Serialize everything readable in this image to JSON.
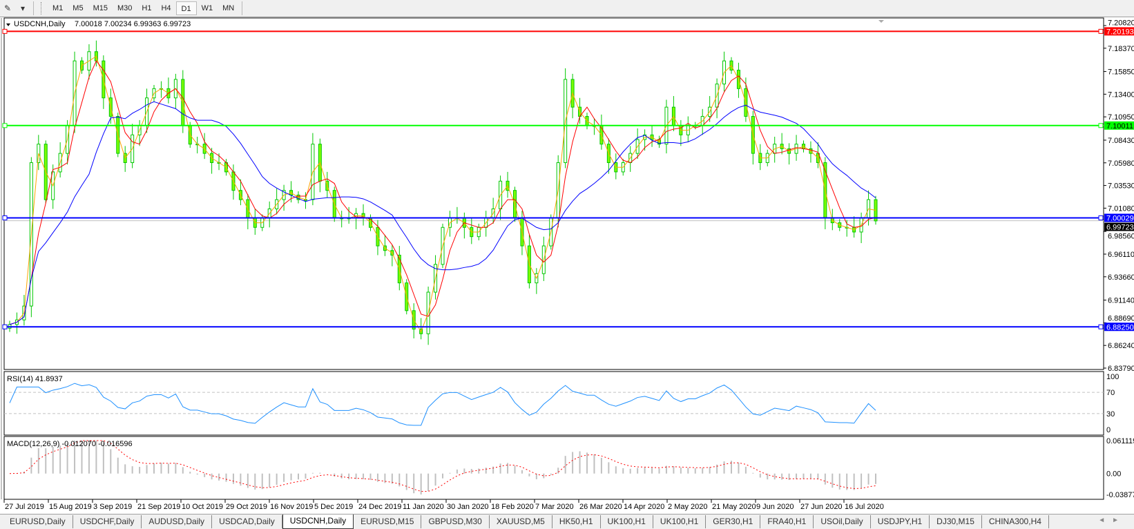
{
  "toolbar": {
    "icon": "crosshair-tools-icon",
    "timeframes": [
      {
        "label": "M1"
      },
      {
        "label": "M5"
      },
      {
        "label": "M15"
      },
      {
        "label": "M30"
      },
      {
        "label": "H1"
      },
      {
        "label": "H4"
      },
      {
        "label": "D1",
        "active": true
      },
      {
        "label": "W1"
      },
      {
        "label": "MN"
      }
    ]
  },
  "chart": {
    "symbol_header": "USDCNH,Daily",
    "ohlc_header": "7.00018 7.00234 6.99363 6.99723",
    "price_ticks": [
      "7.20820",
      "7.18370",
      "7.15850",
      "7.13400",
      "7.10950",
      "7.08430",
      "7.05980",
      "7.03530",
      "7.01080",
      "6.98560",
      "6.96110",
      "6.93660",
      "6.91140",
      "6.88690",
      "6.86240",
      "6.83790"
    ],
    "price_range": [
      6.8379,
      7.2082
    ],
    "horizontal_lines": [
      {
        "label": "7.20193",
        "value": 7.20193,
        "color": "#ff0000"
      },
      {
        "label": "7.10011",
        "value": 7.10011,
        "color": "#00ff00"
      },
      {
        "label": "7.00029",
        "value": 7.00029,
        "color": "#0000ff"
      },
      {
        "label": "6.88250",
        "value": 6.8825,
        "color": "#0000ff"
      }
    ],
    "bid_line": {
      "label": "6.99723",
      "value": 6.99723,
      "color": "#c0c0c0"
    },
    "date_ticks": [
      "27 Jul 2019",
      "15 Aug 2019",
      "3 Sep 2019",
      "21 Sep 2019",
      "10 Oct 2019",
      "29 Oct 2019",
      "16 Nov 2019",
      "5 Dec 2019",
      "24 Dec 2019",
      "11 Jan 2020",
      "30 Jan 2020",
      "18 Feb 2020",
      "7 Mar 2020",
      "26 Mar 2020",
      "14 Apr 2020",
      "2 May 2020",
      "21 May 2020",
      "9 Jun 2020",
      "27 Jun 2020",
      "16 Jul 2020"
    ],
    "colors": {
      "candle": "#00c800",
      "ma_fast": "#ffa500",
      "ma_mid": "#ff0000",
      "ma_slow": "#0000ff",
      "rsi": "#1e90ff",
      "macd_hist": "#c0c0c0",
      "macd_signal": "#ff0000"
    },
    "closes": [
      6.885,
      6.89,
      6.905,
      7.06,
      7.08,
      7.02,
      7.05,
      7.07,
      7.1,
      7.17,
      7.16,
      7.18,
      7.17,
      7.13,
      7.11,
      7.07,
      7.06,
      7.09,
      7.1,
      7.13,
      7.14,
      7.14,
      7.13,
      7.15,
      7.1,
      7.08,
      7.08,
      7.07,
      7.06,
      7.06,
      7.05,
      7.03,
      7.02,
      7.0,
      6.99,
      7.0,
      7.01,
      7.02,
      7.03,
      7.025,
      7.02,
      7.02,
      7.08,
      7.04,
      7.03,
      7.0,
      7.0,
      7.0,
      7.005,
      7.0,
      6.99,
      6.97,
      6.965,
      6.96,
      6.93,
      6.9,
      6.88,
      6.875,
      6.92,
      6.95,
      6.99,
      7.0,
      7.0,
      6.99,
      6.98,
      6.99,
      7.0,
      7.01,
      7.04,
      7.03,
      7.0,
      6.97,
      6.93,
      6.94,
      6.97,
      7.0,
      7.06,
      7.15,
      7.12,
      7.11,
      7.1,
      7.1,
      7.08,
      7.06,
      7.05,
      7.06,
      7.07,
      7.085,
      7.09,
      7.085,
      7.08,
      7.12,
      7.1,
      7.09,
      7.1,
      7.1,
      7.11,
      7.12,
      7.145,
      7.17,
      7.16,
      7.14,
      7.11,
      7.07,
      7.06,
      7.07,
      7.08,
      7.075,
      7.07,
      7.08,
      7.075,
      7.07,
      7.06,
      7.0,
      6.995,
      6.99,
      6.99,
      6.985,
      7.0,
      7.02,
      6.997
    ]
  },
  "rsi": {
    "label": "RSI(14) 41.8937",
    "ticks": [
      "100",
      "70",
      "30",
      "0"
    ]
  },
  "macd": {
    "label": "MACD(12,26,9) -0.012070 -0.016596",
    "ticks": [
      "0.061119",
      "0.00",
      "-0.038777"
    ],
    "range": [
      -0.038777,
      0.061119
    ]
  },
  "tabs": [
    {
      "label": "EURUSD,Daily"
    },
    {
      "label": "USDCHF,Daily"
    },
    {
      "label": "AUDUSD,Daily"
    },
    {
      "label": "USDCAD,Daily"
    },
    {
      "label": "USDCNH,Daily",
      "active": true
    },
    {
      "label": "EURUSD,M15"
    },
    {
      "label": "GBPUSD,M30"
    },
    {
      "label": "XAUUSD,M5"
    },
    {
      "label": "HK50,H1"
    },
    {
      "label": "UK100,H1"
    },
    {
      "label": "UK100,H1"
    },
    {
      "label": "GER30,H1"
    },
    {
      "label": "FRA40,H1"
    },
    {
      "label": "USOil,Daily"
    },
    {
      "label": "USDJPY,H1"
    },
    {
      "label": "DJ30,M15"
    },
    {
      "label": "CHINA300,H4"
    }
  ],
  "tab_scroll": {
    "left": "◄",
    "right": "►"
  }
}
